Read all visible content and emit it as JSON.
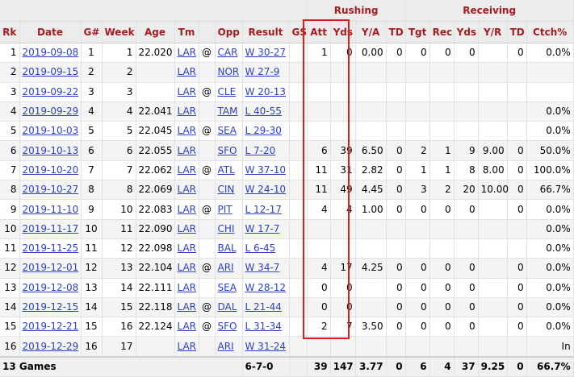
{
  "header": {
    "groups": {
      "rushing": "Rushing",
      "receiving": "Receiving"
    },
    "columns": [
      "Rk",
      "Date",
      "G#",
      "Week",
      "Age",
      "Tm",
      "",
      "Opp",
      "Result",
      "GS",
      "Att",
      "Yds",
      "Y/A",
      "TD",
      "Tgt",
      "Rec",
      "Yds",
      "Y/R",
      "TD",
      "Ctch%"
    ]
  },
  "rows": [
    {
      "rk": "1",
      "date": "2019-09-08",
      "g": "1",
      "week": "1",
      "age": "22.020",
      "tm": "LAR",
      "at": "@",
      "opp": "CAR",
      "result": "W 30-27",
      "gs": "",
      "att": "1",
      "yds": "0",
      "ya": "0.00",
      "td": "0",
      "tgt": "0",
      "rec": "0",
      "ryds": "0",
      "yr": "",
      "rtd": "0",
      "ctch": "0.0%"
    },
    {
      "rk": "2",
      "date": "2019-09-15",
      "g": "2",
      "week": "2",
      "age": "",
      "tm": "LAR",
      "at": "",
      "opp": "NOR",
      "result": "W 27-9",
      "gs": "",
      "att": "",
      "yds": "",
      "ya": "",
      "td": "",
      "tgt": "",
      "rec": "",
      "ryds": "",
      "yr": "",
      "rtd": "",
      "ctch": ""
    },
    {
      "rk": "3",
      "date": "2019-09-22",
      "g": "3",
      "week": "3",
      "age": "",
      "tm": "LAR",
      "at": "@",
      "opp": "CLE",
      "result": "W 20-13",
      "gs": "",
      "att": "",
      "yds": "",
      "ya": "",
      "td": "",
      "tgt": "",
      "rec": "",
      "ryds": "",
      "yr": "",
      "rtd": "",
      "ctch": ""
    },
    {
      "rk": "4",
      "date": "2019-09-29",
      "g": "4",
      "week": "4",
      "age": "22.041",
      "tm": "LAR",
      "at": "",
      "opp": "TAM",
      "result": "L 40-55",
      "gs": "",
      "att": "",
      "yds": "",
      "ya": "",
      "td": "",
      "tgt": "",
      "rec": "",
      "ryds": "",
      "yr": "",
      "rtd": "",
      "ctch": "0.0%"
    },
    {
      "rk": "5",
      "date": "2019-10-03",
      "g": "5",
      "week": "5",
      "age": "22.045",
      "tm": "LAR",
      "at": "@",
      "opp": "SEA",
      "result": "L 29-30",
      "gs": "",
      "att": "",
      "yds": "",
      "ya": "",
      "td": "",
      "tgt": "",
      "rec": "",
      "ryds": "",
      "yr": "",
      "rtd": "",
      "ctch": "0.0%"
    },
    {
      "rk": "6",
      "date": "2019-10-13",
      "g": "6",
      "week": "6",
      "age": "22.055",
      "tm": "LAR",
      "at": "",
      "opp": "SFO",
      "result": "L 7-20",
      "gs": "",
      "att": "6",
      "yds": "39",
      "ya": "6.50",
      "td": "0",
      "tgt": "2",
      "rec": "1",
      "ryds": "9",
      "yr": "9.00",
      "rtd": "0",
      "ctch": "50.0%"
    },
    {
      "rk": "7",
      "date": "2019-10-20",
      "g": "7",
      "week": "7",
      "age": "22.062",
      "tm": "LAR",
      "at": "@",
      "opp": "ATL",
      "result": "W 37-10",
      "gs": "",
      "att": "11",
      "yds": "31",
      "ya": "2.82",
      "td": "0",
      "tgt": "1",
      "rec": "1",
      "ryds": "8",
      "yr": "8.00",
      "rtd": "0",
      "ctch": "100.0%"
    },
    {
      "rk": "8",
      "date": "2019-10-27",
      "g": "8",
      "week": "8",
      "age": "22.069",
      "tm": "LAR",
      "at": "",
      "opp": "CIN",
      "result": "W 24-10",
      "gs": "",
      "att": "11",
      "yds": "49",
      "ya": "4.45",
      "td": "0",
      "tgt": "3",
      "rec": "2",
      "ryds": "20",
      "yr": "10.00",
      "rtd": "0",
      "ctch": "66.7%"
    },
    {
      "rk": "9",
      "date": "2019-11-10",
      "g": "9",
      "week": "10",
      "age": "22.083",
      "tm": "LAR",
      "at": "@",
      "opp": "PIT",
      "result": "L 12-17",
      "gs": "",
      "att": "4",
      "yds": "4",
      "ya": "1.00",
      "td": "0",
      "tgt": "0",
      "rec": "0",
      "ryds": "0",
      "yr": "",
      "rtd": "0",
      "ctch": "0.0%"
    },
    {
      "rk": "10",
      "date": "2019-11-17",
      "g": "10",
      "week": "11",
      "age": "22.090",
      "tm": "LAR",
      "at": "",
      "opp": "CHI",
      "result": "W 17-7",
      "gs": "",
      "att": "",
      "yds": "",
      "ya": "",
      "td": "",
      "tgt": "",
      "rec": "",
      "ryds": "",
      "yr": "",
      "rtd": "",
      "ctch": "0.0%"
    },
    {
      "rk": "11",
      "date": "2019-11-25",
      "g": "11",
      "week": "12",
      "age": "22.098",
      "tm": "LAR",
      "at": "",
      "opp": "BAL",
      "result": "L 6-45",
      "gs": "",
      "att": "",
      "yds": "",
      "ya": "",
      "td": "",
      "tgt": "",
      "rec": "",
      "ryds": "",
      "yr": "",
      "rtd": "",
      "ctch": "0.0%"
    },
    {
      "rk": "12",
      "date": "2019-12-01",
      "g": "12",
      "week": "13",
      "age": "22.104",
      "tm": "LAR",
      "at": "@",
      "opp": "ARI",
      "result": "W 34-7",
      "gs": "",
      "att": "4",
      "yds": "17",
      "ya": "4.25",
      "td": "0",
      "tgt": "0",
      "rec": "0",
      "ryds": "0",
      "yr": "",
      "rtd": "0",
      "ctch": "0.0%"
    },
    {
      "rk": "13",
      "date": "2019-12-08",
      "g": "13",
      "week": "14",
      "age": "22.111",
      "tm": "LAR",
      "at": "",
      "opp": "SEA",
      "result": "W 28-12",
      "gs": "",
      "att": "0",
      "yds": "0",
      "ya": "",
      "td": "0",
      "tgt": "0",
      "rec": "0",
      "ryds": "0",
      "yr": "",
      "rtd": "0",
      "ctch": "0.0%"
    },
    {
      "rk": "14",
      "date": "2019-12-15",
      "g": "14",
      "week": "15",
      "age": "22.118",
      "tm": "LAR",
      "at": "@",
      "opp": "DAL",
      "result": "L 21-44",
      "gs": "",
      "att": "0",
      "yds": "0",
      "ya": "",
      "td": "0",
      "tgt": "0",
      "rec": "0",
      "ryds": "0",
      "yr": "",
      "rtd": "0",
      "ctch": "0.0%"
    },
    {
      "rk": "15",
      "date": "2019-12-21",
      "g": "15",
      "week": "16",
      "age": "22.124",
      "tm": "LAR",
      "at": "@",
      "opp": "SFO",
      "result": "L 31-34",
      "gs": "",
      "att": "2",
      "yds": "7",
      "ya": "3.50",
      "td": "0",
      "tgt": "0",
      "rec": "0",
      "ryds": "0",
      "yr": "",
      "rtd": "0",
      "ctch": "0.0%"
    },
    {
      "rk": "16",
      "date": "2019-12-29",
      "g": "16",
      "week": "17",
      "age": "",
      "tm": "LAR",
      "at": "",
      "opp": "ARI",
      "result": "W 31-24",
      "gs": "",
      "att": "",
      "yds": "",
      "ya": "",
      "td": "",
      "tgt": "",
      "rec": "",
      "ryds": "",
      "yr": "",
      "rtd": "",
      "ctch": "In"
    }
  ],
  "totals": {
    "label": "13 Games",
    "result": "6-7-0",
    "att": "39",
    "yds": "147",
    "ya": "3.77",
    "td": "0",
    "tgt": "6",
    "rec": "4",
    "ryds": "37",
    "yr": "9.25",
    "rtd": "0",
    "ctch": "66.7%"
  },
  "colors": {
    "header_text": "#a61c20",
    "link": "#2b41c9",
    "highlight": "#e01b1b"
  }
}
